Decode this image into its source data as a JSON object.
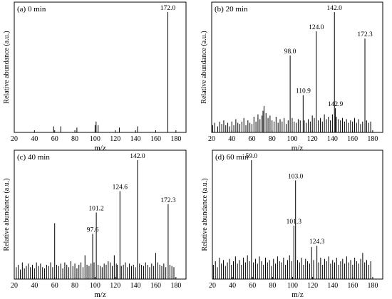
{
  "chart_data": [
    {
      "type": "bar",
      "title": "(a) 0 min",
      "xlabel": "m/z",
      "ylabel": "Relative abundance (a.u.)",
      "xlim": [
        20,
        190
      ],
      "xticks": [
        20,
        40,
        60,
        80,
        100,
        120,
        140,
        160,
        180
      ],
      "ylim": [
        0,
        100
      ],
      "peaks": {
        "x": [
          59,
          66,
          82,
          100,
          101,
          103,
          124,
          142,
          172
        ],
        "y": [
          5,
          5,
          4,
          6,
          9,
          6,
          4,
          5,
          100
        ]
      },
      "peak_labels": [
        {
          "x": 172,
          "y": 100,
          "label": "172.0"
        }
      ]
    },
    {
      "type": "bar",
      "title": "(b) 20 min",
      "xlabel": "m/z",
      "ylabel": "Relative abundance (a.u.)",
      "xlim": [
        20,
        190
      ],
      "xticks": [
        20,
        40,
        60,
        80,
        100,
        120,
        140,
        160,
        180
      ],
      "ylim": [
        0,
        100
      ],
      "peaks": {
        "x": [
          21,
          23,
          26,
          28,
          30,
          32,
          34,
          36,
          38,
          40,
          42,
          44,
          46,
          48,
          50,
          52,
          54,
          56,
          58,
          60,
          62,
          64,
          66,
          68,
          70,
          71,
          72,
          74,
          76,
          78,
          80,
          82,
          84,
          86,
          88,
          90,
          92,
          94,
          96,
          98,
          100,
          102,
          104,
          106,
          108,
          110.9,
          112,
          114,
          116,
          118,
          120,
          122,
          124,
          126,
          128,
          130,
          132,
          134,
          136,
          138,
          140,
          142,
          142.9,
          144,
          146,
          148,
          150,
          152,
          154,
          156,
          158,
          160,
          162,
          164,
          166,
          168,
          170,
          172.3,
          174,
          176,
          178
        ],
        "y": [
          6,
          8,
          5,
          9,
          7,
          10,
          6,
          8,
          5,
          9,
          6,
          11,
          8,
          7,
          9,
          12,
          6,
          10,
          8,
          7,
          13,
          9,
          15,
          11,
          14,
          18,
          22,
          16,
          12,
          14,
          10,
          9,
          13,
          8,
          11,
          9,
          12,
          7,
          10,
          64,
          12,
          9,
          8,
          11,
          10,
          31,
          10,
          8,
          11,
          9,
          14,
          12,
          84,
          10,
          12,
          9,
          15,
          11,
          13,
          10,
          15,
          100,
          20,
          13,
          11,
          10,
          12,
          9,
          11,
          8,
          10,
          9,
          12,
          8,
          11,
          7,
          9,
          78,
          10,
          8,
          9
        ]
      },
      "peak_labels": [
        {
          "x": 98,
          "y": 64,
          "label": "98.0"
        },
        {
          "x": 110.9,
          "y": 31,
          "label": "110.9"
        },
        {
          "x": 124,
          "y": 84,
          "label": "124.0"
        },
        {
          "x": 142,
          "y": 100,
          "label": "142.0"
        },
        {
          "x": 142.9,
          "y": 20,
          "label": "142.9"
        },
        {
          "x": 172.3,
          "y": 78,
          "label": "172.3"
        }
      ]
    },
    {
      "type": "bar",
      "title": "(c) 40 min",
      "xlabel": "m/z",
      "ylabel": "Relative abundance (a.u.)",
      "xlim": [
        20,
        190
      ],
      "xticks": [
        20,
        40,
        60,
        80,
        100,
        120,
        140,
        160,
        180
      ],
      "ylim": [
        0,
        100
      ],
      "peaks": {
        "x": [
          22,
          24,
          26,
          28,
          30,
          32,
          34,
          36,
          38,
          40,
          42,
          44,
          46,
          48,
          50,
          52,
          54,
          56,
          58,
          60,
          62,
          64,
          66,
          68,
          70,
          72,
          74,
          76,
          78,
          80,
          82,
          84,
          86,
          88,
          90,
          92,
          94,
          96,
          97.6,
          99,
          101.2,
          103,
          105,
          107,
          109,
          111,
          113,
          115,
          117,
          119,
          121,
          122,
          124.6,
          126,
          128,
          130,
          132,
          134,
          136,
          138,
          140,
          142,
          144,
          146,
          148,
          150,
          152,
          154,
          156,
          158,
          160,
          162,
          164,
          166,
          168,
          170,
          172.3,
          174,
          176,
          178
        ],
        "y": [
          10,
          12,
          8,
          14,
          9,
          11,
          13,
          10,
          12,
          9,
          14,
          11,
          13,
          10,
          9,
          12,
          11,
          14,
          10,
          47,
          12,
          11,
          13,
          9,
          14,
          12,
          10,
          15,
          11,
          13,
          9,
          12,
          14,
          10,
          20,
          12,
          11,
          13,
          38,
          14,
          56,
          12,
          11,
          10,
          13,
          12,
          15,
          14,
          11,
          20,
          13,
          12,
          74,
          11,
          12,
          14,
          10,
          13,
          11,
          12,
          10,
          100,
          13,
          12,
          11,
          14,
          12,
          10,
          13,
          11,
          22,
          14,
          12,
          11,
          13,
          10,
          63,
          12,
          11,
          10
        ]
      },
      "peak_labels": [
        {
          "x": 97.6,
          "y": 38,
          "label": "97.6"
        },
        {
          "x": 101.2,
          "y": 56,
          "label": "101.2"
        },
        {
          "x": 124.6,
          "y": 74,
          "label": "124.6"
        },
        {
          "x": 142,
          "y": 100,
          "label": "142.0"
        },
        {
          "x": 172.3,
          "y": 63,
          "label": "172.3"
        }
      ]
    },
    {
      "type": "bar",
      "title": "(d) 60 min",
      "xlabel": "m/z",
      "ylabel": "Relative abundance (a.u.)",
      "xlim": [
        20,
        190
      ],
      "xticks": [
        20,
        40,
        60,
        80,
        100,
        120,
        140,
        160,
        180
      ],
      "ylim": [
        0,
        100
      ],
      "peaks": {
        "x": [
          21,
          23,
          25,
          27,
          29,
          31,
          33,
          35,
          37,
          39,
          41,
          43,
          45,
          47,
          49,
          51,
          53,
          55,
          57,
          59,
          61,
          63,
          65,
          67,
          69,
          71,
          73,
          75,
          77,
          79,
          81,
          83,
          85,
          87,
          89,
          91,
          93,
          95,
          97,
          99,
          101.3,
          103,
          105,
          107,
          109,
          111,
          113,
          115,
          117,
          119,
          121,
          124.3,
          126,
          128,
          130,
          132,
          134,
          136,
          138,
          140,
          142,
          144,
          146,
          148,
          150,
          152,
          154,
          156,
          158,
          160,
          162,
          164,
          166,
          168,
          170,
          172,
          174,
          176,
          178
        ],
        "y": [
          12,
          15,
          10,
          18,
          13,
          16,
          11,
          14,
          17,
          12,
          15,
          19,
          13,
          16,
          12,
          18,
          14,
          20,
          15,
          100,
          14,
          17,
          13,
          19,
          15,
          12,
          18,
          14,
          16,
          11,
          17,
          13,
          19,
          15,
          14,
          18,
          12,
          16,
          20,
          15,
          45,
          83,
          16,
          14,
          18,
          12,
          17,
          15,
          13,
          27,
          16,
          28,
          14,
          18,
          12,
          17,
          15,
          19,
          13,
          16,
          14,
          18,
          12,
          15,
          17,
          13,
          19,
          14,
          16,
          12,
          18,
          15,
          13,
          17,
          22,
          14,
          16,
          12,
          15
        ]
      },
      "peak_labels": [
        {
          "x": 59,
          "y": 100,
          "label": "59.0"
        },
        {
          "x": 101.3,
          "y": 45,
          "label": "101.3"
        },
        {
          "x": 103,
          "y": 83,
          "label": "103.0"
        },
        {
          "x": 124.3,
          "y": 28,
          "label": "124.3"
        }
      ]
    }
  ]
}
